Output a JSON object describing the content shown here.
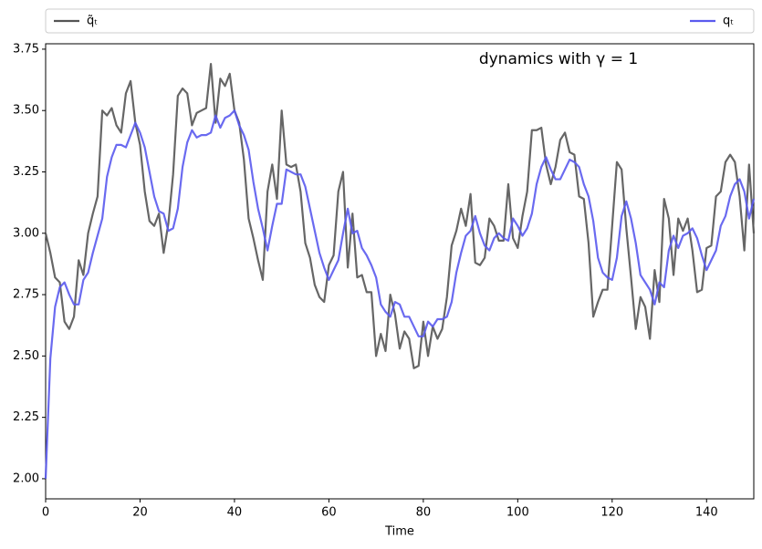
{
  "chart_data": {
    "type": "line",
    "annotation": "dynamics with γ = 1",
    "x_label": "Time",
    "x": [
      0,
      1,
      2,
      3,
      4,
      5,
      6,
      7,
      8,
      9,
      10,
      11,
      12,
      13,
      14,
      15,
      16,
      17,
      18,
      19,
      20,
      21,
      22,
      23,
      24,
      25,
      26,
      27,
      28,
      29,
      30,
      31,
      32,
      33,
      34,
      35,
      36,
      37,
      38,
      39,
      40,
      41,
      42,
      43,
      44,
      45,
      46,
      47,
      48,
      49,
      50,
      51,
      52,
      53,
      54,
      55,
      56,
      57,
      58,
      59,
      60,
      61,
      62,
      63,
      64,
      65,
      66,
      67,
      68,
      69,
      70,
      71,
      72,
      73,
      74,
      75,
      76,
      77,
      78,
      79,
      80,
      81,
      82,
      83,
      84,
      85,
      86,
      87,
      88,
      89,
      90,
      91,
      92,
      93,
      94,
      95,
      96,
      97,
      98,
      99,
      100,
      101,
      102,
      103,
      104,
      105,
      106,
      107,
      108,
      109,
      110,
      111,
      112,
      113,
      114,
      115,
      116,
      117,
      118,
      119,
      120,
      121,
      122,
      123,
      124,
      125,
      126,
      127,
      128,
      129,
      130,
      131,
      132,
      133,
      134,
      135,
      136,
      137,
      138,
      139,
      140,
      141,
      142,
      143,
      144,
      145,
      146,
      147,
      148,
      149,
      150
    ],
    "series": [
      {
        "name": "q̃ₜ",
        "color": "#555555",
        "values": [
          3.0,
          2.92,
          2.82,
          2.8,
          2.64,
          2.61,
          2.66,
          2.89,
          2.83,
          3.0,
          3.08,
          3.15,
          3.5,
          3.48,
          3.51,
          3.44,
          3.41,
          3.57,
          3.62,
          3.45,
          3.36,
          3.17,
          3.05,
          3.03,
          3.08,
          2.92,
          3.04,
          3.24,
          3.56,
          3.59,
          3.57,
          3.44,
          3.49,
          3.5,
          3.51,
          3.69,
          3.45,
          3.63,
          3.6,
          3.65,
          3.5,
          3.45,
          3.3,
          3.06,
          2.98,
          2.89,
          2.81,
          3.17,
          3.28,
          3.14,
          3.5,
          3.28,
          3.27,
          3.28,
          3.17,
          2.96,
          2.9,
          2.79,
          2.74,
          2.72,
          2.87,
          2.91,
          3.17,
          3.25,
          2.86,
          3.08,
          2.82,
          2.83,
          2.76,
          2.76,
          2.5,
          2.59,
          2.52,
          2.75,
          2.67,
          2.53,
          2.6,
          2.57,
          2.45,
          2.46,
          2.64,
          2.5,
          2.62,
          2.57,
          2.61,
          2.74,
          2.95,
          3.01,
          3.1,
          3.03,
          3.16,
          2.88,
          2.87,
          2.9,
          3.06,
          3.03,
          2.97,
          2.97,
          3.2,
          2.98,
          2.94,
          3.07,
          3.17,
          3.42,
          3.42,
          3.43,
          3.28,
          3.2,
          3.27,
          3.38,
          3.41,
          3.33,
          3.32,
          3.15,
          3.14,
          2.96,
          2.66,
          2.72,
          2.77,
          2.77,
          3.03,
          3.29,
          3.26,
          3.02,
          2.82,
          2.61,
          2.74,
          2.7,
          2.57,
          2.85,
          2.72,
          3.14,
          3.06,
          2.83,
          3.06,
          3.01,
          3.06,
          2.93,
          2.76,
          2.77,
          2.94,
          2.95,
          3.15,
          3.17,
          3.29,
          3.32,
          3.29,
          3.15,
          2.93,
          3.28,
          3.0
        ]
      },
      {
        "name": "qₜ",
        "color": "#5a5aee",
        "values": [
          2.0,
          2.49,
          2.7,
          2.78,
          2.8,
          2.75,
          2.71,
          2.71,
          2.81,
          2.84,
          2.92,
          2.99,
          3.06,
          3.23,
          3.31,
          3.36,
          3.36,
          3.35,
          3.4,
          3.45,
          3.41,
          3.35,
          3.25,
          3.15,
          3.09,
          3.08,
          3.01,
          3.02,
          3.1,
          3.27,
          3.37,
          3.42,
          3.39,
          3.4,
          3.4,
          3.41,
          3.48,
          3.43,
          3.47,
          3.48,
          3.5,
          3.44,
          3.4,
          3.34,
          3.21,
          3.1,
          3.02,
          2.93,
          3.03,
          3.12,
          3.12,
          3.26,
          3.25,
          3.24,
          3.24,
          3.19,
          3.1,
          3.01,
          2.92,
          2.86,
          2.81,
          2.85,
          2.89,
          3.0,
          3.1,
          3.0,
          3.01,
          2.94,
          2.91,
          2.87,
          2.82,
          2.71,
          2.68,
          2.66,
          2.72,
          2.71,
          2.66,
          2.66,
          2.62,
          2.58,
          2.58,
          2.64,
          2.62,
          2.65,
          2.65,
          2.66,
          2.72,
          2.84,
          2.92,
          2.99,
          3.01,
          3.07,
          3.0,
          2.95,
          2.93,
          2.98,
          3.0,
          2.98,
          2.97,
          3.06,
          3.03,
          2.99,
          3.02,
          3.08,
          3.2,
          3.27,
          3.31,
          3.26,
          3.22,
          3.22,
          3.26,
          3.3,
          3.29,
          3.27,
          3.2,
          3.15,
          3.05,
          2.9,
          2.84,
          2.82,
          2.81,
          2.9,
          3.07,
          3.13,
          3.06,
          2.96,
          2.83,
          2.8,
          2.77,
          2.71,
          2.8,
          2.78,
          2.93,
          2.99,
          2.94,
          2.99,
          3.0,
          3.02,
          2.98,
          2.91,
          2.85,
          2.89,
          2.93,
          3.03,
          3.07,
          3.15,
          3.2,
          3.22,
          3.17,
          3.06,
          3.14
        ]
      }
    ],
    "xlim": [
      0,
      150
    ],
    "xticks": [
      0,
      20,
      40,
      60,
      80,
      100,
      120,
      140
    ],
    "ylim": [
      1.918,
      3.772
    ],
    "yticks": [
      {
        "value": 2,
        "label": "2.00"
      },
      {
        "value": 2.25,
        "label": "2.25"
      },
      {
        "value": 2.5,
        "label": "2.50"
      },
      {
        "value": 2.75,
        "label": "2.75"
      },
      {
        "value": 3,
        "label": "3.00"
      },
      {
        "value": 3.25,
        "label": "3.25"
      },
      {
        "value": 3.5,
        "label": "3.50"
      },
      {
        "value": 3.75,
        "label": "3.75"
      }
    ],
    "legend": "top"
  }
}
